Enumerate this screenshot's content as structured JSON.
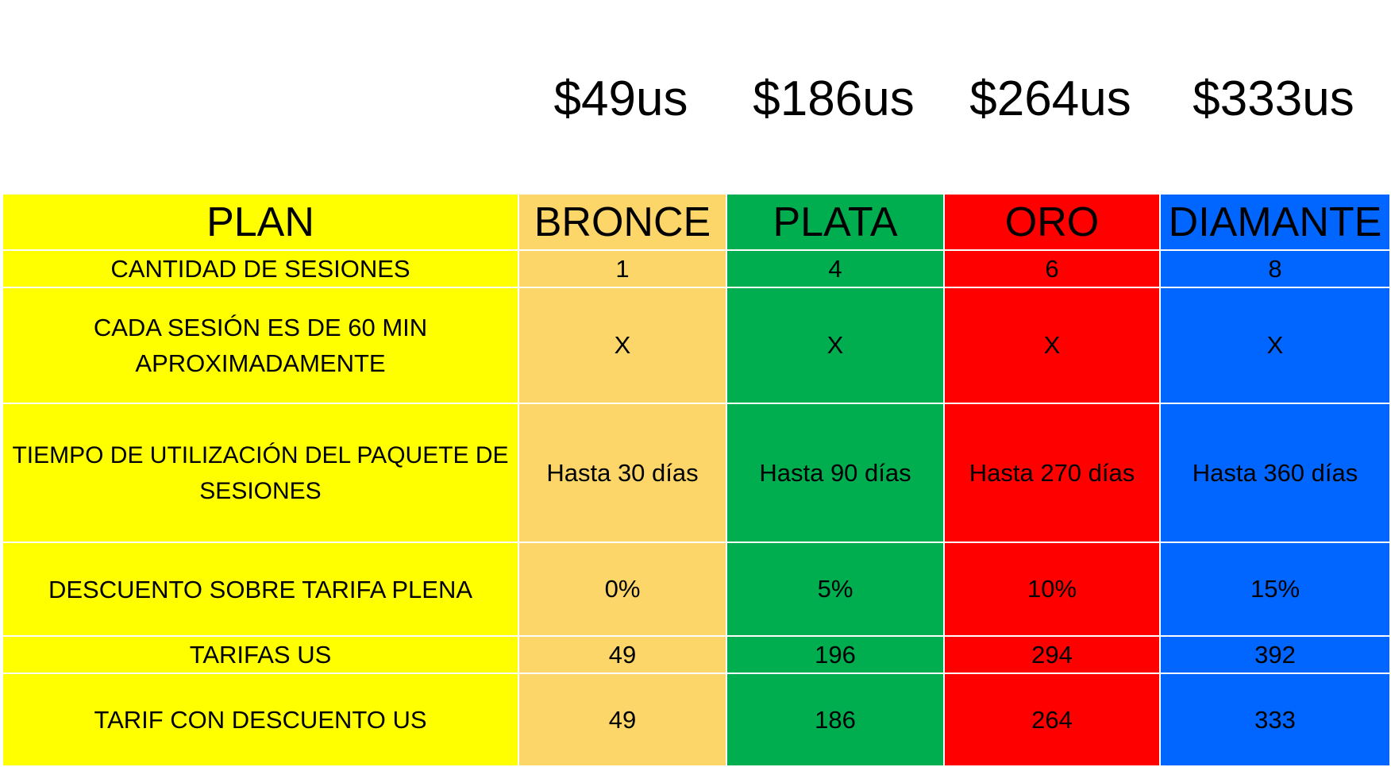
{
  "prices": [
    "$49us",
    "$186us",
    "$264us",
    "$333us"
  ],
  "header": {
    "label": "PLAN",
    "plans": [
      "BRONCE",
      "PLATA",
      "ORO",
      "DIAMANTE"
    ]
  },
  "rows": [
    {
      "label": "CANTIDAD DE SESIONES",
      "values": [
        "1",
        "4",
        "6",
        "8"
      ]
    },
    {
      "label": "CADA SESIÓN ES DE 60 MIN APROXIMADAMENTE",
      "values": [
        "X",
        "X",
        "X",
        "X"
      ]
    },
    {
      "label": "TIEMPO DE UTILIZACIÓN DEL PAQUETE DE SESIONES",
      "values": [
        "Hasta 30 días",
        "Hasta 90 días",
        "Hasta 270 días",
        "Hasta 360 días"
      ]
    },
    {
      "label": "DESCUENTO SOBRE TARIFA PLENA",
      "values": [
        "0%",
        "5%",
        "10%",
        "15%"
      ]
    },
    {
      "label": "TARIFAS US",
      "values": [
        "49",
        "196",
        "294",
        "392"
      ]
    },
    {
      "label": "TARIF CON DESCUENTO US",
      "values": [
        "49",
        "186",
        "264",
        "333"
      ]
    }
  ],
  "colors": {
    "label_column": "#ffff00",
    "bronce": "#fcd668",
    "plata": "#00ae4f",
    "oro": "#ff0000",
    "diamante": "#0066ff"
  }
}
